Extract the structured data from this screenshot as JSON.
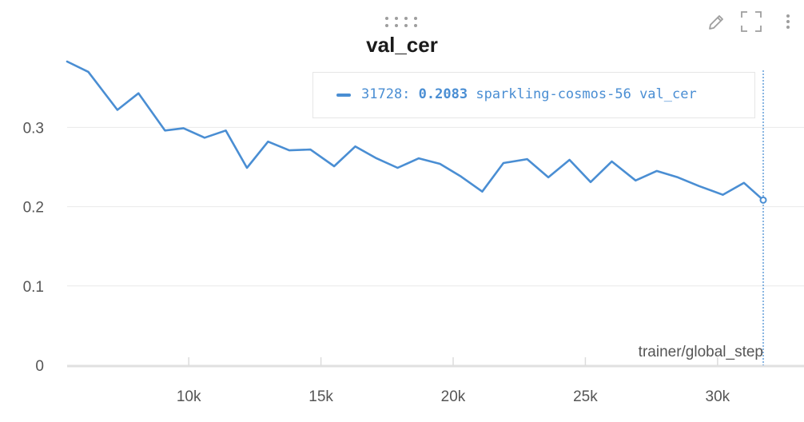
{
  "panel": {
    "title": "val_cer",
    "icons": {
      "drag": "drag-handle-icon",
      "edit": "pencil-icon",
      "expand": "fullscreen-icon",
      "menu": "kebab-menu-icon"
    }
  },
  "legend": {
    "step": "31728:",
    "value": "0.2083",
    "run_name": "sparkling-cosmos-56",
    "metric": "val_cer",
    "color": "#4a8ed3"
  },
  "chart_data": {
    "type": "line",
    "title": "val_cer",
    "xlabel": "trainer/global_step",
    "ylabel": "",
    "xlim": [
      5400,
      31728
    ],
    "ylim": [
      0,
      0.38
    ],
    "x_ticks": [
      10000,
      15000,
      20000,
      25000,
      30000
    ],
    "x_tick_labels": [
      "10k",
      "15k",
      "20k",
      "25k",
      "30k"
    ],
    "y_ticks": [
      0,
      0.1,
      0.2,
      0.3
    ],
    "y_tick_labels": [
      "0",
      "0.1",
      "0.2",
      "0.3"
    ],
    "grid": true,
    "hover_x": 31728,
    "series": [
      {
        "name": "sparkling-cosmos-56 val_cer",
        "color": "#4a8ed3",
        "x": [
          5400,
          6200,
          7300,
          8100,
          9100,
          9800,
          10600,
          11400,
          12200,
          13000,
          13800,
          14600,
          15500,
          16300,
          17100,
          17900,
          18700,
          19500,
          20300,
          21100,
          21900,
          22800,
          23600,
          24400,
          25200,
          26000,
          26900,
          27700,
          28500,
          29300,
          30200,
          31000,
          31728
        ],
        "y": [
          0.383,
          0.37,
          0.322,
          0.343,
          0.296,
          0.299,
          0.287,
          0.296,
          0.249,
          0.282,
          0.271,
          0.272,
          0.251,
          0.276,
          0.261,
          0.249,
          0.261,
          0.254,
          0.238,
          0.219,
          0.255,
          0.26,
          0.237,
          0.259,
          0.231,
          0.257,
          0.233,
          0.245,
          0.237,
          0.226,
          0.215,
          0.23,
          0.2083
        ]
      }
    ]
  }
}
